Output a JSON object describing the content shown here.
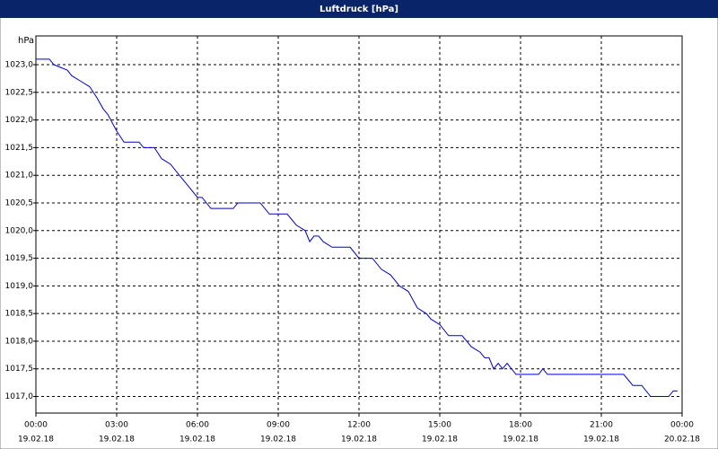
{
  "chart_data": {
    "type": "line",
    "title": "Luftdruck [hPa]",
    "y_unit": "hPa",
    "x": [
      0,
      0.5,
      0.67,
      1.17,
      1.33,
      1.67,
      2,
      2.27,
      2.5,
      2.67,
      3,
      3.27,
      3.83,
      4,
      4.4,
      4.67,
      5,
      5.33,
      5.67,
      6,
      6.17,
      6.5,
      7.33,
      7.5,
      8.33,
      8.67,
      9.33,
      9.67,
      10,
      10.17,
      10.33,
      10.5,
      10.67,
      11,
      11.67,
      12,
      12.5,
      12.83,
      13.17,
      13.5,
      13.83,
      14.17,
      14.5,
      14.67,
      15,
      15.33,
      15.83,
      16.17,
      16.5,
      16.67,
      16.83,
      17,
      17.17,
      17.33,
      17.5,
      17.83,
      18.67,
      18.83,
      19,
      21.83,
      22.17,
      22.5,
      22.83,
      23.5,
      23.67,
      23.83
    ],
    "series": [
      {
        "color": "#0000c8",
        "values": [
          1023.1,
          1023.1,
          1023.0,
          1022.9,
          1022.8,
          1022.7,
          1022.6,
          1022.4,
          1022.2,
          1022.1,
          1021.8,
          1021.6,
          1021.6,
          1021.5,
          1021.5,
          1021.3,
          1021.2,
          1021.0,
          1020.8,
          1020.6,
          1020.6,
          1020.4,
          1020.4,
          1020.5,
          1020.5,
          1020.3,
          1020.3,
          1020.1,
          1020.0,
          1019.8,
          1019.9,
          1019.9,
          1019.8,
          1019.7,
          1019.7,
          1019.5,
          1019.5,
          1019.3,
          1019.2,
          1019.0,
          1018.9,
          1018.6,
          1018.5,
          1018.4,
          1018.3,
          1018.1,
          1018.1,
          1017.9,
          1017.8,
          1017.7,
          1017.7,
          1017.5,
          1017.6,
          1017.5,
          1017.6,
          1017.4,
          1017.4,
          1017.5,
          1017.4,
          1017.4,
          1017.2,
          1017.2,
          1017.0,
          1017.0,
          1017.1,
          1017.1
        ]
      }
    ],
    "xlim": [
      0,
      24
    ],
    "xticks": [
      {
        "value": 0,
        "label": "00:00"
      },
      {
        "value": 3,
        "label": "03:00"
      },
      {
        "value": 6,
        "label": "06:00"
      },
      {
        "value": 9,
        "label": "09:00"
      },
      {
        "value": 12,
        "label": "12:00"
      },
      {
        "value": 15,
        "label": "15:00"
      },
      {
        "value": 18,
        "label": "18:00"
      },
      {
        "value": 21,
        "label": "21:00"
      },
      {
        "value": 24,
        "label": "00:00"
      }
    ],
    "xtick_dates": [
      "19.02.18",
      "19.02.18",
      "19.02.18",
      "19.02.18",
      "19.02.18",
      "19.02.18",
      "19.02.18",
      "19.02.18",
      "20.02.18"
    ],
    "ylim": [
      1016.7,
      1023.52
    ],
    "yticks": [
      {
        "value": 1017,
        "label": "1017,0"
      },
      {
        "value": 1017.5,
        "label": "1017,5"
      },
      {
        "value": 1018,
        "label": "1018,0"
      },
      {
        "value": 1018.5,
        "label": "1018,5"
      },
      {
        "value": 1019,
        "label": "1019,0"
      },
      {
        "value": 1019.5,
        "label": "1019,5"
      },
      {
        "value": 1020,
        "label": "1020,0"
      },
      {
        "value": 1020.5,
        "label": "1020,5"
      },
      {
        "value": 1021,
        "label": "1021,0"
      },
      {
        "value": 1021.5,
        "label": "1021,5"
      },
      {
        "value": 1022,
        "label": "1022,0"
      },
      {
        "value": 1022.5,
        "label": "1022,5"
      },
      {
        "value": 1023,
        "label": "1023,0"
      }
    ],
    "grid": true
  }
}
